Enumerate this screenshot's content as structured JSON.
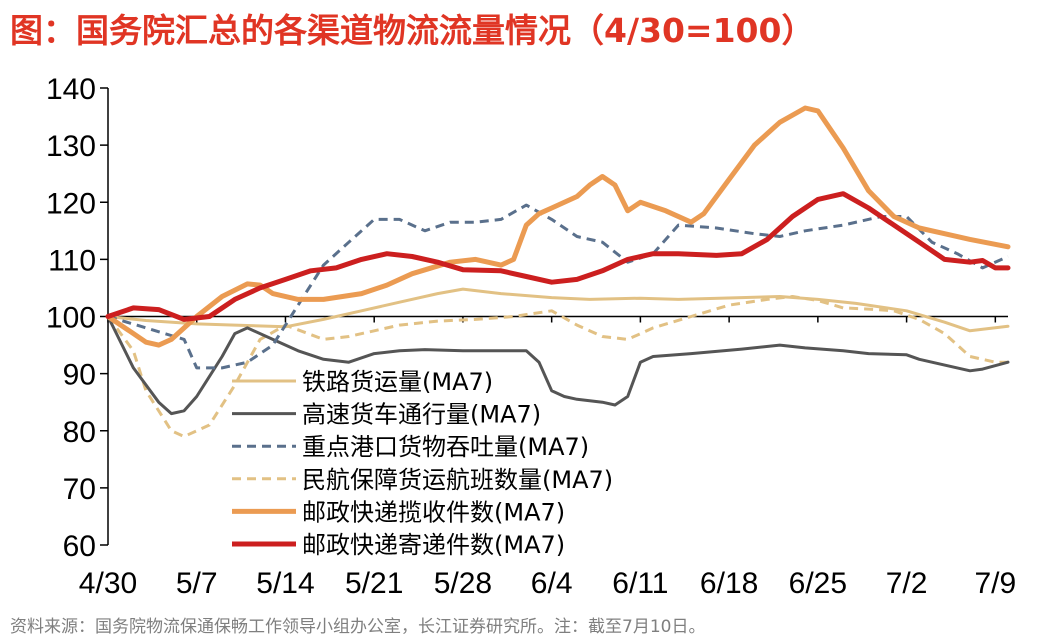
{
  "title": "图：国务院汇总的各渠道物流流量情况（4/30=100）",
  "source": "资料来源：国务院物流保通保畅工作领导小组办公室，长江证券研究所。注：截至7月10日。",
  "chart_data": {
    "type": "line",
    "ylim": [
      60,
      140
    ],
    "yticks": [
      60,
      70,
      80,
      90,
      100,
      110,
      120,
      130,
      140
    ],
    "xlim": [
      0,
      71
    ],
    "xticks": [
      {
        "label": "4/30",
        "x": 0
      },
      {
        "label": "5/7",
        "x": 7
      },
      {
        "label": "5/14",
        "x": 14
      },
      {
        "label": "5/21",
        "x": 21
      },
      {
        "label": "5/28",
        "x": 28
      },
      {
        "label": "6/4",
        "x": 35
      },
      {
        "label": "6/11",
        "x": 42
      },
      {
        "label": "6/18",
        "x": 49
      },
      {
        "label": "6/25",
        "x": 56
      },
      {
        "label": "7/2",
        "x": 63
      },
      {
        "label": "7/9",
        "x": 70
      }
    ],
    "series": [
      {
        "name": "铁路货运量(MA7)",
        "color": "#e2c184",
        "dash": "solid",
        "width": 3,
        "points": [
          [
            0,
            100
          ],
          [
            3,
            99.3
          ],
          [
            7,
            98.7
          ],
          [
            10,
            98.5
          ],
          [
            14,
            98.2
          ],
          [
            17,
            99.5
          ],
          [
            20,
            101
          ],
          [
            23,
            102.5
          ],
          [
            26,
            104
          ],
          [
            28,
            104.8
          ],
          [
            31,
            104
          ],
          [
            35,
            103.3
          ],
          [
            38,
            103
          ],
          [
            42,
            103.2
          ],
          [
            45,
            103
          ],
          [
            50,
            103.3
          ],
          [
            53,
            103.5
          ],
          [
            56,
            103
          ],
          [
            59,
            102.3
          ],
          [
            63,
            101
          ],
          [
            66,
            99
          ],
          [
            68,
            97.5
          ],
          [
            71,
            98.3
          ]
        ]
      },
      {
        "name": "高速货车通行量(MA7)",
        "color": "#555555",
        "dash": "solid",
        "width": 3,
        "points": [
          [
            0,
            100
          ],
          [
            2,
            91
          ],
          [
            4,
            85
          ],
          [
            5,
            83
          ],
          [
            6,
            83.5
          ],
          [
            7,
            86
          ],
          [
            9,
            93
          ],
          [
            10,
            97
          ],
          [
            11,
            98
          ],
          [
            13,
            96
          ],
          [
            15,
            94
          ],
          [
            17,
            92.5
          ],
          [
            19,
            92
          ],
          [
            21,
            93.5
          ],
          [
            23,
            94
          ],
          [
            25,
            94.2
          ],
          [
            28,
            94
          ],
          [
            31,
            94
          ],
          [
            33,
            94
          ],
          [
            34,
            92
          ],
          [
            35,
            87
          ],
          [
            36,
            86
          ],
          [
            37,
            85.5
          ],
          [
            39,
            85
          ],
          [
            40,
            84.5
          ],
          [
            41,
            86
          ],
          [
            42,
            92
          ],
          [
            43,
            93
          ],
          [
            46,
            93.5
          ],
          [
            50,
            94.3
          ],
          [
            53,
            95
          ],
          [
            55,
            94.5
          ],
          [
            58,
            94
          ],
          [
            60,
            93.5
          ],
          [
            63,
            93.3
          ],
          [
            64,
            92.5
          ],
          [
            66,
            91.5
          ],
          [
            68,
            90.5
          ],
          [
            69,
            90.8
          ],
          [
            71,
            92
          ]
        ]
      },
      {
        "name": "重点港口货物吞吐量(MA7)",
        "color": "#5a708c",
        "dash": "dash",
        "width": 3,
        "points": [
          [
            0,
            100
          ],
          [
            3,
            98
          ],
          [
            6,
            96
          ],
          [
            7,
            91
          ],
          [
            9,
            91
          ],
          [
            11,
            92
          ],
          [
            13,
            95
          ],
          [
            15,
            102
          ],
          [
            17,
            109
          ],
          [
            19,
            113
          ],
          [
            21,
            117
          ],
          [
            23,
            117
          ],
          [
            25,
            115
          ],
          [
            27,
            116.5
          ],
          [
            29,
            116.5
          ],
          [
            31,
            117
          ],
          [
            33,
            119.5
          ],
          [
            35,
            117
          ],
          [
            37,
            114
          ],
          [
            39,
            113
          ],
          [
            41,
            109.5
          ],
          [
            43,
            111
          ],
          [
            45,
            116
          ],
          [
            48,
            115.5
          ],
          [
            51,
            114.5
          ],
          [
            53,
            114
          ],
          [
            55,
            115
          ],
          [
            58,
            116
          ],
          [
            61,
            117.5
          ],
          [
            63,
            117.5
          ],
          [
            65,
            113
          ],
          [
            67,
            111
          ],
          [
            69,
            108.5
          ],
          [
            71,
            110.5
          ]
        ]
      },
      {
        "name": "民航保障货运航班数量(MA7)",
        "color": "#e2c184",
        "dash": "dash",
        "width": 3,
        "points": [
          [
            0,
            100
          ],
          [
            2,
            94
          ],
          [
            3,
            87
          ],
          [
            5,
            80
          ],
          [
            6,
            79
          ],
          [
            8,
            81
          ],
          [
            10,
            88
          ],
          [
            12,
            96
          ],
          [
            14,
            98.5
          ],
          [
            17,
            96
          ],
          [
            19,
            96.5
          ],
          [
            21,
            97.5
          ],
          [
            23,
            98.5
          ],
          [
            26,
            99.2
          ],
          [
            29,
            99.5
          ],
          [
            32,
            100
          ],
          [
            35,
            101
          ],
          [
            37,
            98.5
          ],
          [
            39,
            96.5
          ],
          [
            41,
            96
          ],
          [
            43,
            98
          ],
          [
            46,
            100
          ],
          [
            49,
            102
          ],
          [
            52,
            103
          ],
          [
            54,
            103.5
          ],
          [
            56,
            102.8
          ],
          [
            58,
            101.5
          ],
          [
            60,
            101.3
          ],
          [
            62,
            101
          ],
          [
            64,
            99.5
          ],
          [
            66,
            97
          ],
          [
            68,
            93
          ],
          [
            70,
            92
          ],
          [
            71,
            92
          ]
        ]
      },
      {
        "name": "邮政快递揽收件数(MA7)",
        "color": "#eb9b52",
        "dash": "solid",
        "width": 5,
        "points": [
          [
            0,
            100
          ],
          [
            2,
            97
          ],
          [
            3,
            95.5
          ],
          [
            4,
            95
          ],
          [
            5,
            96
          ],
          [
            7,
            100
          ],
          [
            9,
            103.5
          ],
          [
            11,
            105.7
          ],
          [
            12,
            105.5
          ],
          [
            13,
            104
          ],
          [
            15,
            103
          ],
          [
            17,
            103
          ],
          [
            20,
            104
          ],
          [
            22,
            105.5
          ],
          [
            24,
            107.5
          ],
          [
            27,
            109.5
          ],
          [
            29,
            110
          ],
          [
            31,
            109
          ],
          [
            32,
            110
          ],
          [
            33,
            116
          ],
          [
            34,
            118
          ],
          [
            35,
            119
          ],
          [
            37,
            121
          ],
          [
            38,
            123
          ],
          [
            39,
            124.5
          ],
          [
            40,
            123
          ],
          [
            41,
            118.5
          ],
          [
            42,
            120
          ],
          [
            44,
            118.5
          ],
          [
            46,
            116.5
          ],
          [
            47,
            118
          ],
          [
            49,
            124
          ],
          [
            51,
            130
          ],
          [
            53,
            134
          ],
          [
            55,
            136.5
          ],
          [
            56,
            136
          ],
          [
            58,
            129.5
          ],
          [
            60,
            122
          ],
          [
            62,
            117.5
          ],
          [
            64,
            115.5
          ],
          [
            66,
            114.5
          ],
          [
            68,
            113.5
          ],
          [
            71,
            112.2
          ]
        ]
      },
      {
        "name": "邮政快递寄递件数(MA7)",
        "color": "#cc1f1f",
        "dash": "solid",
        "width": 5,
        "points": [
          [
            0,
            100
          ],
          [
            2,
            101.5
          ],
          [
            4,
            101.2
          ],
          [
            6,
            99.5
          ],
          [
            8,
            100
          ],
          [
            10,
            103
          ],
          [
            12,
            105
          ],
          [
            14,
            106.5
          ],
          [
            16,
            108
          ],
          [
            18,
            108.5
          ],
          [
            20,
            110
          ],
          [
            22,
            111
          ],
          [
            24,
            110.5
          ],
          [
            26,
            109.5
          ],
          [
            28,
            108.2
          ],
          [
            31,
            108
          ],
          [
            33,
            107
          ],
          [
            35,
            106
          ],
          [
            37,
            106.5
          ],
          [
            39,
            108
          ],
          [
            41,
            110
          ],
          [
            43,
            111
          ],
          [
            45,
            111
          ],
          [
            48,
            110.7
          ],
          [
            50,
            111
          ],
          [
            52,
            113.5
          ],
          [
            54,
            117.5
          ],
          [
            56,
            120.5
          ],
          [
            58,
            121.5
          ],
          [
            60,
            119
          ],
          [
            62,
            116
          ],
          [
            64,
            113
          ],
          [
            66,
            110
          ],
          [
            68,
            109.5
          ],
          [
            69,
            109.8
          ],
          [
            70,
            108.5
          ],
          [
            71,
            108.5
          ]
        ]
      }
    ]
  }
}
